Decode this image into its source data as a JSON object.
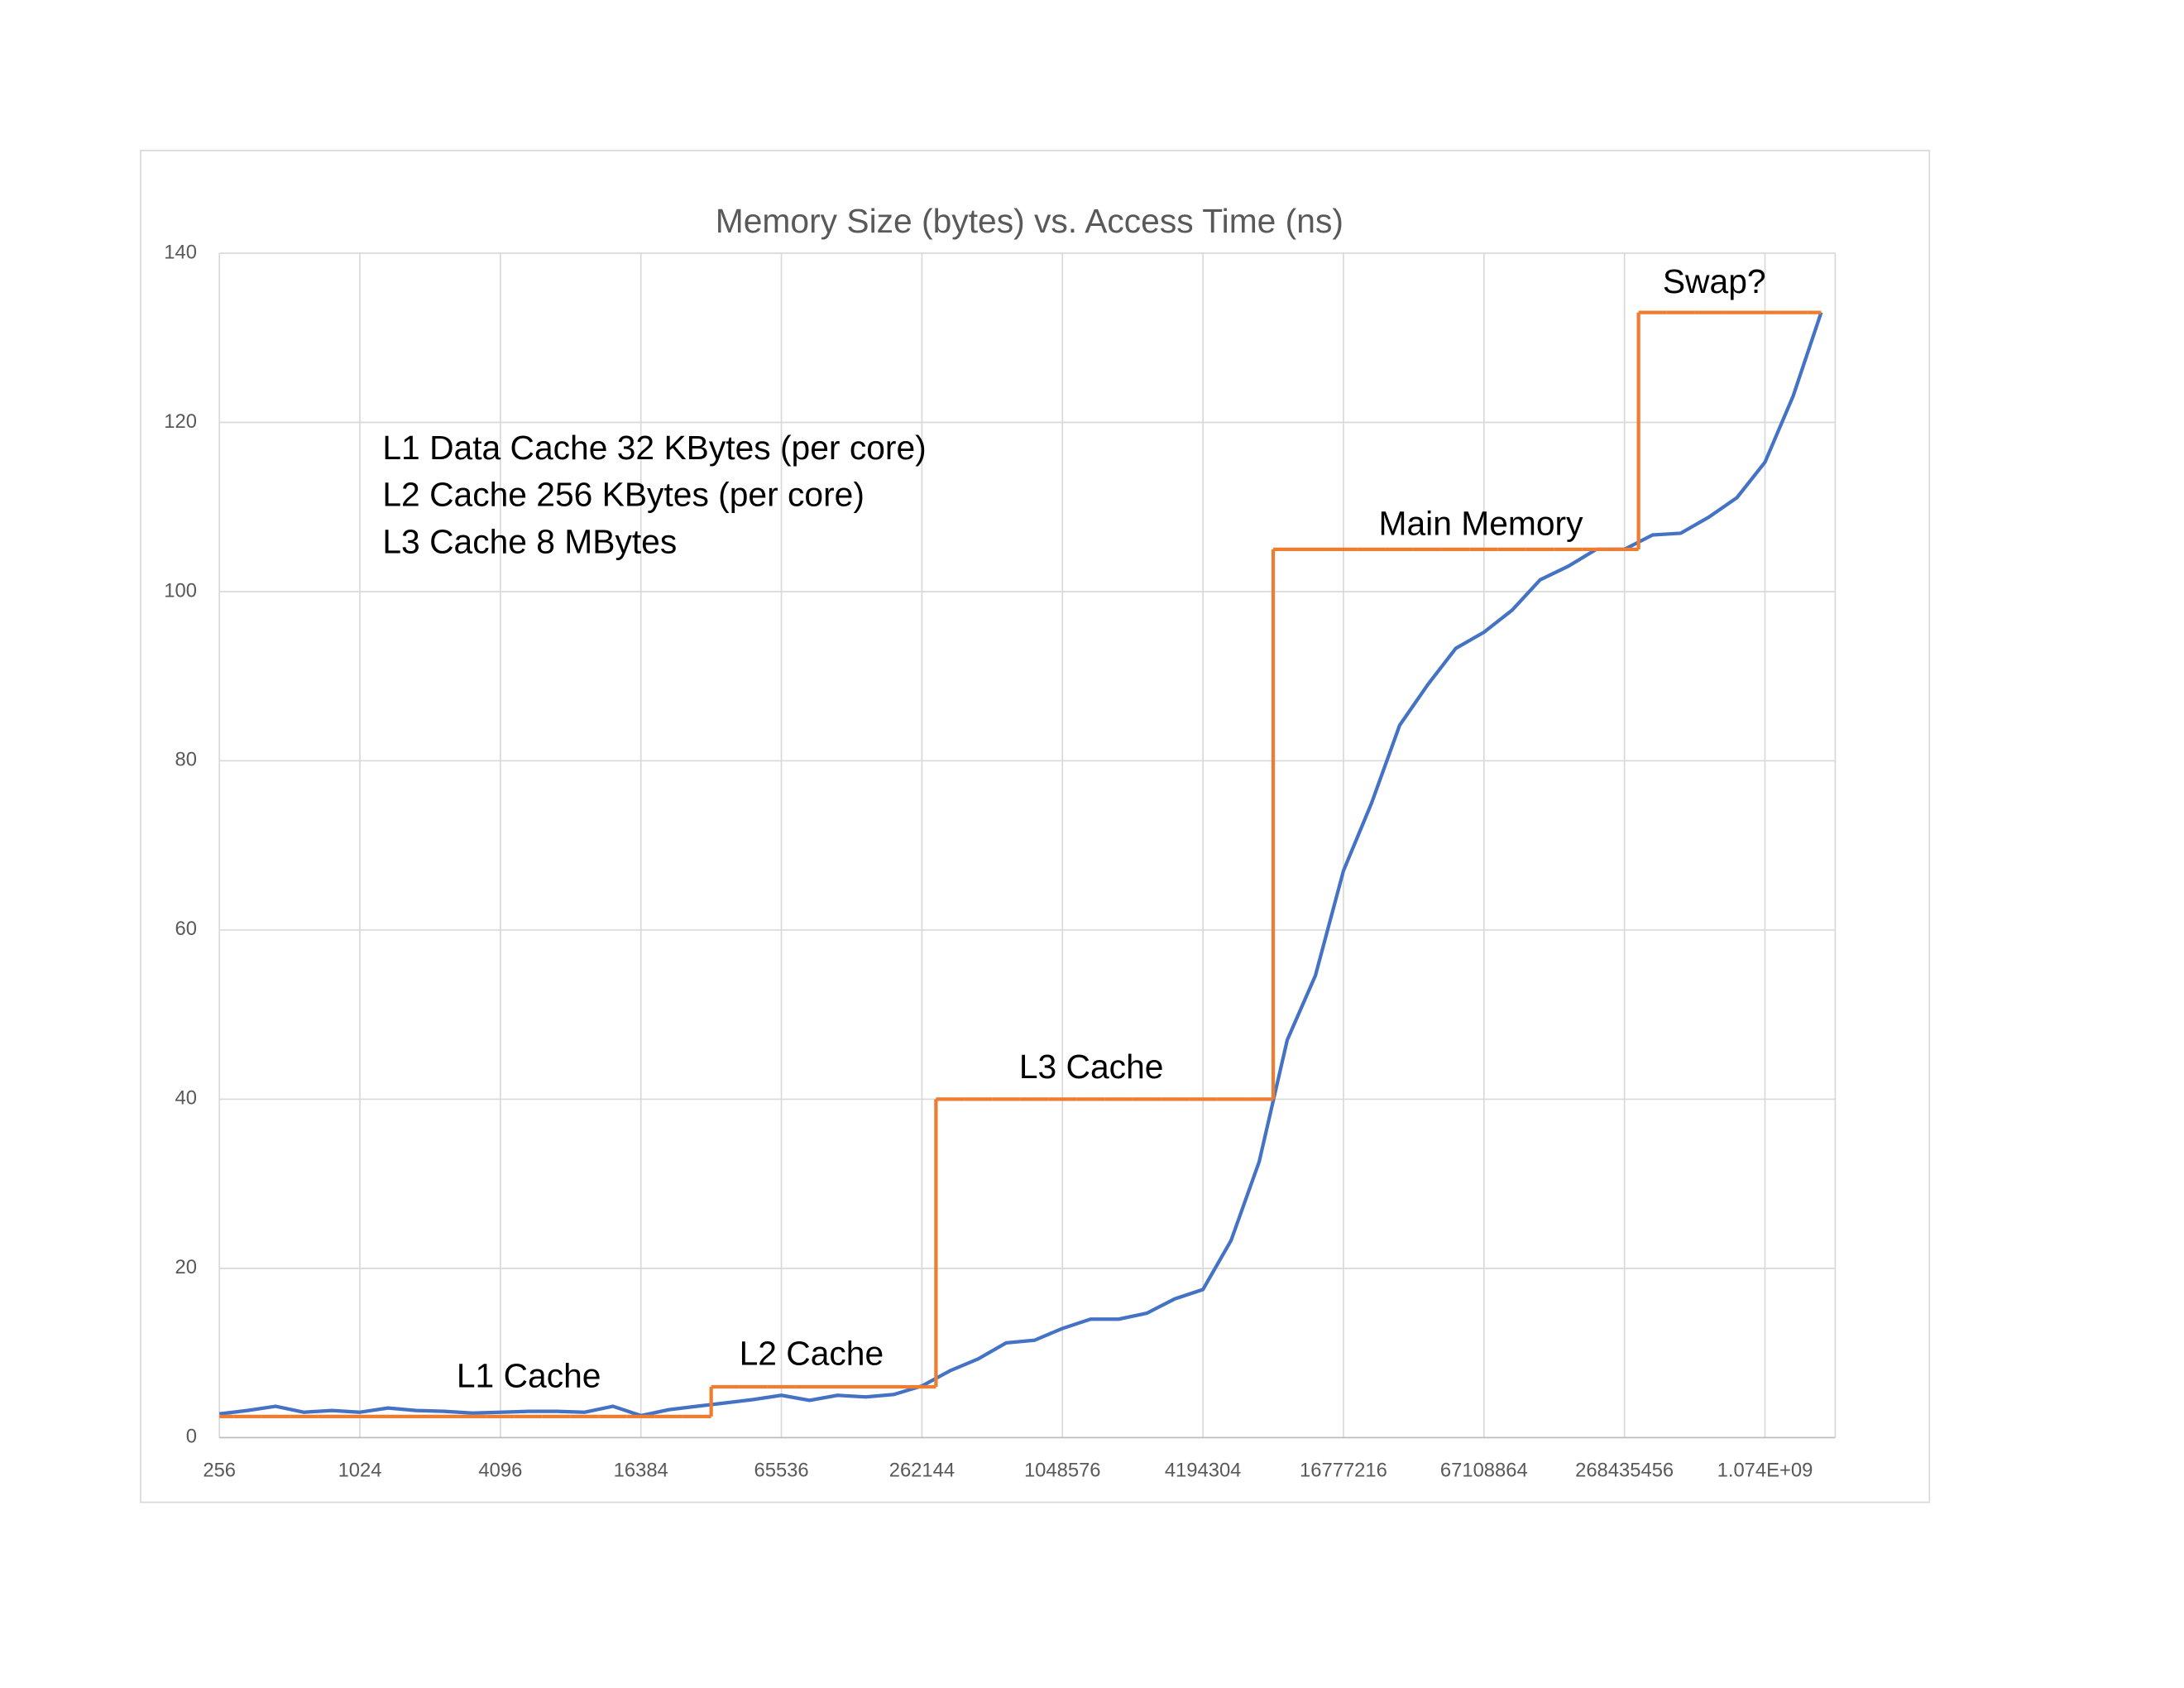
{
  "chart_data": {
    "type": "line",
    "title": "Memory Size (bytes) vs. Access Time (ns)",
    "categories": [
      "256",
      null,
      null,
      null,
      null,
      "1024",
      null,
      null,
      null,
      null,
      "4096",
      null,
      null,
      null,
      null,
      "16384",
      null,
      null,
      null,
      null,
      "65536",
      null,
      null,
      null,
      null,
      "262144",
      null,
      null,
      null,
      null,
      "1048576",
      null,
      null,
      null,
      null,
      "4194304",
      null,
      null,
      null,
      null,
      "16777216",
      null,
      null,
      null,
      null,
      "67108864",
      null,
      null,
      null,
      null,
      "268435456",
      null,
      null,
      null,
      null,
      "1.074E+09",
      null,
      null
    ],
    "series": [
      {
        "color": "#4472c4",
        "values": [
          2.8,
          3.2,
          3.7,
          3.0,
          3.2,
          3.0,
          3.5,
          3.2,
          3.1,
          2.9,
          3.0,
          3.1,
          3.1,
          3.0,
          3.7,
          2.6,
          3.3,
          3.7,
          4.1,
          4.5,
          5.0,
          4.4,
          5.0,
          4.8,
          5.1,
          6.1,
          7.9,
          9.3,
          11.2,
          11.5,
          12.9,
          14.0,
          14.0,
          14.7,
          16.4,
          17.5,
          23.3,
          32.6,
          47,
          54.6,
          67,
          75,
          84.2,
          89,
          93.3,
          95.2,
          97.8,
          101.4,
          103,
          105,
          105,
          106.7,
          106.9,
          108.8,
          111.1,
          115.3,
          123.1,
          133
        ]
      },
      {
        "color": "#ed7d31",
        "step": true,
        "values": [
          2.5,
          2.5,
          2.5,
          2.5,
          2.5,
          2.5,
          2.5,
          2.5,
          2.5,
          2.5,
          2.5,
          2.5,
          2.5,
          2.5,
          2.5,
          2.5,
          2.5,
          2.5,
          6,
          6,
          6,
          6,
          6,
          6,
          6,
          6,
          40,
          40,
          40,
          40,
          40,
          40,
          40,
          40,
          40,
          40,
          40,
          40,
          105,
          105,
          105,
          105,
          105,
          105,
          105,
          105,
          105,
          105,
          105,
          105,
          105,
          133,
          133,
          133,
          133,
          133,
          133,
          133
        ]
      }
    ],
    "ylim": [
      0,
      140
    ],
    "yticks": [
      0,
      20,
      40,
      60,
      80,
      100,
      120,
      140
    ],
    "grid": true,
    "annotations": [
      "L1 Cache",
      "L2 Cache",
      "L3 Cache",
      "Main Memory",
      "Swap?"
    ],
    "notes": [
      "L1 Data Cache 32 KBytes (per core)",
      "L2 Cache 256 KBytes (per core)",
      "L3 Cache 8 MBytes"
    ]
  }
}
